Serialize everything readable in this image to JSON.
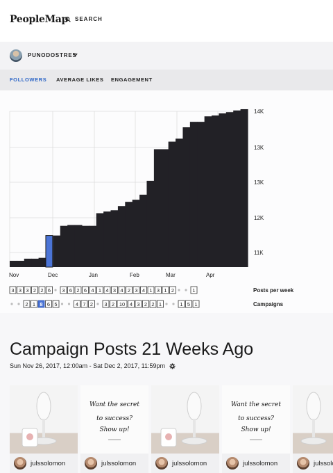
{
  "app": {
    "logo": "PeopleMap",
    "search_label": "SEARCH"
  },
  "account": {
    "name": "PUNODOSTRES"
  },
  "tabs": [
    {
      "label": "FOLLOWERS",
      "active": true
    },
    {
      "label": "AVERAGE LIKES",
      "active": false
    },
    {
      "label": "ENGAGEMENT",
      "active": false
    }
  ],
  "chart_data": {
    "type": "bar",
    "xlabels": [
      "Nov",
      "Dec",
      "Jan",
      "Feb",
      "Mar",
      "Apr"
    ],
    "ylabels": [
      "14K",
      "13K",
      "13K",
      "12K",
      "11K"
    ],
    "values": [
      10.95,
      10.95,
      11.0,
      11.0,
      11.02,
      11.55,
      11.55,
      11.78,
      11.8,
      11.8,
      11.78,
      11.78,
      12.08,
      12.12,
      12.15,
      12.25,
      12.35,
      12.4,
      12.52,
      12.85,
      13.6,
      13.6,
      13.78,
      13.85,
      14.12,
      14.25,
      14.25,
      14.38,
      14.4,
      14.45,
      14.48,
      14.52,
      14.55
    ],
    "selected_index": 5,
    "ylim": [
      10.8,
      14.5
    ],
    "bar_color": "#222126",
    "selected_color": "#4b74d6"
  },
  "posts_row": {
    "label": "Posts per week",
    "items": [
      "3",
      "3",
      "3",
      "2",
      "2",
      "6",
      "•",
      "3",
      "6",
      "2",
      "6",
      "4",
      "1",
      "4",
      "3",
      "4",
      "2",
      "3",
      "4",
      "1",
      "3",
      "1",
      "2",
      "•",
      "•",
      "1"
    ]
  },
  "campaigns_row": {
    "label": "Campaigns",
    "items": [
      "•",
      "•",
      "2",
      "1",
      "8",
      "6",
      "5",
      "•",
      "•",
      "4",
      "7",
      "2",
      "•",
      "3",
      "2",
      "10",
      "4",
      "3",
      "2",
      "2",
      "1",
      "•",
      "•",
      "1",
      "5",
      "1"
    ],
    "selected": "8"
  },
  "section": {
    "title": "Campaign Posts 21 Weeks Ago",
    "range": "Sun Nov 26, 2017, 12:00am - Sat Dec 2, 2017, 11:59pm"
  },
  "posts": [
    {
      "kind": "mic",
      "user": "julssolomon"
    },
    {
      "kind": "text",
      "user": "julssolomon",
      "line1": "Want the secret",
      "line2": "to success?",
      "line3": "Show up!"
    },
    {
      "kind": "mic",
      "user": "julssolomon"
    },
    {
      "kind": "text",
      "user": "julssolomon",
      "line1": "Want the secret",
      "line2": "to success?",
      "line3": "Show up!"
    },
    {
      "kind": "mic",
      "user": "julssolomon"
    }
  ]
}
